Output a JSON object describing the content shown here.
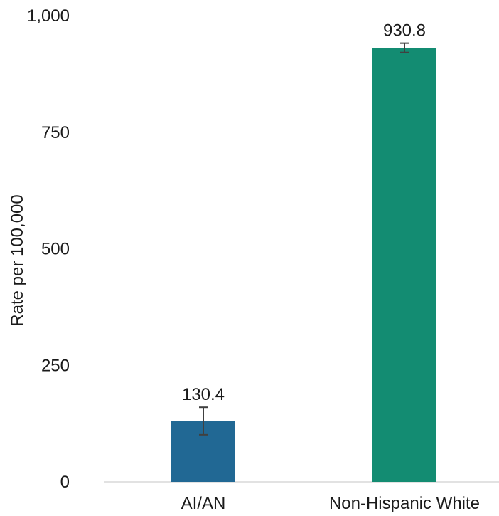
{
  "chart_data": {
    "type": "bar",
    "title": "",
    "xlabel": "",
    "ylabel": "Rate per 100,000",
    "ylim": [
      0,
      1000
    ],
    "yticks": [
      0,
      250,
      500,
      750,
      1000
    ],
    "ytick_labels": [
      "0",
      "250",
      "500",
      "750",
      "1,000"
    ],
    "grid": false,
    "categories": [
      "AI/AN",
      "Non-Hispanic White"
    ],
    "values": [
      130.4,
      930.8
    ],
    "value_labels": [
      "130.4",
      "930.8"
    ],
    "error_bars": [
      {
        "low": 101,
        "high": 160
      },
      {
        "low": 921,
        "high": 941
      }
    ],
    "colors": [
      "#216894",
      "#138c72"
    ],
    "error_bar_color": "#404040",
    "axis_color": "#d9d9d9"
  }
}
